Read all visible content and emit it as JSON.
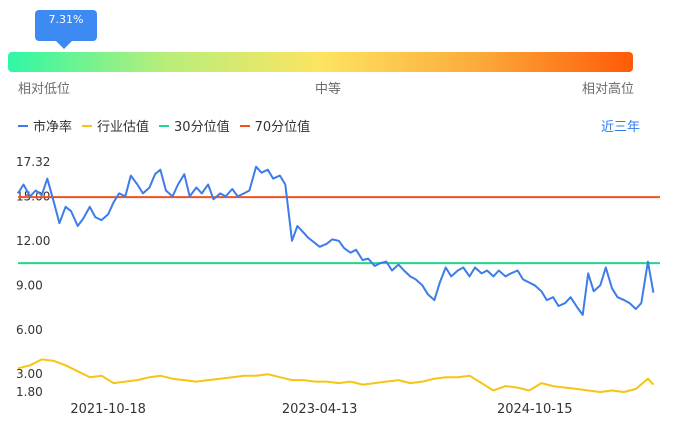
{
  "percentile_gauge": {
    "tooltip_value": "7.31%",
    "percentile": 7.31,
    "labels": {
      "low": "相对低位",
      "mid": "中等",
      "high": "相对高位"
    }
  },
  "legend": {
    "items": [
      {
        "label": "市净率",
        "color": "#3d7ce9"
      },
      {
        "label": "行业估值",
        "color": "#f5c515"
      },
      {
        "label": "30分位值",
        "color": "#1ed98b"
      },
      {
        "label": "70分位值",
        "color": "#f4511e"
      }
    ],
    "range_label": "近三年"
  },
  "chart_data": {
    "type": "line",
    "y_ticks": [
      "17.32",
      "15.00",
      "12.00",
      "9.00",
      "6.00",
      "3.00",
      "1.80"
    ],
    "ylim": [
      1.8,
      17.32
    ],
    "x_ticks": [
      "2021-10-18",
      "2023-04-13",
      "2024-10-15"
    ],
    "xlim": [
      "2021-03-01",
      "2025-09-01"
    ],
    "series": [
      {
        "name": "市净率",
        "color": "#3d7ce9",
        "x": [
          "2021-03-01",
          "2021-03-15",
          "2021-04-01",
          "2021-04-15",
          "2021-05-01",
          "2021-05-15",
          "2021-06-01",
          "2021-06-15",
          "2021-07-01",
          "2021-07-15",
          "2021-08-01",
          "2021-08-15",
          "2021-09-01",
          "2021-09-15",
          "2021-10-01",
          "2021-10-18",
          "2021-11-01",
          "2021-11-15",
          "2021-12-01",
          "2021-12-15",
          "2022-01-01",
          "2022-01-15",
          "2022-02-01",
          "2022-02-15",
          "2022-03-01",
          "2022-03-15",
          "2022-04-01",
          "2022-04-15",
          "2022-05-01",
          "2022-05-15",
          "2022-06-01",
          "2022-06-15",
          "2022-07-01",
          "2022-07-15",
          "2022-08-01",
          "2022-08-15",
          "2022-09-01",
          "2022-09-15",
          "2022-10-01",
          "2022-10-15",
          "2022-11-01",
          "2022-11-15",
          "2022-12-01",
          "2022-12-15",
          "2023-01-01",
          "2023-01-15",
          "2023-02-01",
          "2023-02-15",
          "2023-03-01",
          "2023-03-15",
          "2023-04-13",
          "2023-05-01",
          "2023-05-15",
          "2023-06-01",
          "2023-06-15",
          "2023-07-01",
          "2023-07-15",
          "2023-08-01",
          "2023-08-15",
          "2023-09-01",
          "2023-09-15",
          "2023-10-01",
          "2023-10-15",
          "2023-11-01",
          "2023-11-15",
          "2023-12-01",
          "2023-12-15",
          "2024-01-01",
          "2024-01-15",
          "2024-02-01",
          "2024-02-15",
          "2024-03-01",
          "2024-03-15",
          "2024-04-01",
          "2024-04-15",
          "2024-05-01",
          "2024-05-15",
          "2024-06-01",
          "2024-06-15",
          "2024-07-01",
          "2024-07-15",
          "2024-08-01",
          "2024-08-15",
          "2024-09-01",
          "2024-09-15",
          "2024-10-15",
          "2024-11-01",
          "2024-11-15",
          "2024-12-01",
          "2024-12-15",
          "2025-01-01",
          "2025-01-15",
          "2025-02-01",
          "2025-02-15",
          "2025-03-01",
          "2025-03-15",
          "2025-04-01",
          "2025-04-15",
          "2025-05-01",
          "2025-05-15",
          "2025-06-01",
          "2025-06-15",
          "2025-07-01",
          "2025-07-15",
          "2025-08-01",
          "2025-08-15"
        ],
        "values": [
          15.2,
          15.8,
          15.0,
          15.4,
          15.1,
          16.2,
          14.6,
          13.2,
          14.3,
          14.0,
          13.0,
          13.5,
          14.3,
          13.6,
          13.4,
          13.8,
          14.6,
          15.2,
          15.0,
          16.4,
          15.8,
          15.2,
          15.6,
          16.5,
          16.8,
          15.4,
          15.0,
          15.8,
          16.5,
          15.0,
          15.6,
          15.2,
          15.8,
          14.8,
          15.2,
          15.0,
          15.5,
          15.0,
          15.2,
          15.4,
          17.0,
          16.6,
          16.8,
          16.2,
          16.4,
          15.8,
          12.0,
          13.0,
          12.6,
          12.2,
          11.6,
          11.8,
          12.1,
          12.0,
          11.5,
          11.2,
          11.4,
          10.7,
          10.8,
          10.3,
          10.5,
          10.6,
          10.0,
          10.4,
          10.0,
          9.6,
          9.4,
          9.0,
          8.4,
          8.0,
          9.2,
          10.2,
          9.6,
          10.0,
          10.2,
          9.6,
          10.2,
          9.8,
          10.0,
          9.6,
          10.0,
          9.6,
          9.8,
          10.0,
          9.4,
          9.0,
          8.6,
          8.0,
          8.2,
          7.6,
          7.8,
          8.2,
          7.5,
          7.0,
          9.8,
          8.6,
          9.0,
          10.2,
          8.8,
          8.2,
          8.0,
          7.8,
          7.4,
          7.8,
          10.6,
          8.5
        ]
      },
      {
        "name": "行业估值",
        "color": "#f5c515",
        "x": [
          "2021-03-01",
          "2021-04-01",
          "2021-05-01",
          "2021-06-01",
          "2021-07-01",
          "2021-08-01",
          "2021-09-01",
          "2021-10-01",
          "2021-11-01",
          "2021-12-01",
          "2022-01-01",
          "2022-02-01",
          "2022-03-01",
          "2022-04-01",
          "2022-05-01",
          "2022-06-01",
          "2022-07-01",
          "2022-08-01",
          "2022-09-01",
          "2022-10-01",
          "2022-11-01",
          "2022-12-01",
          "2023-01-01",
          "2023-02-01",
          "2023-03-01",
          "2023-04-01",
          "2023-05-01",
          "2023-06-01",
          "2023-07-01",
          "2023-08-01",
          "2023-09-01",
          "2023-10-01",
          "2023-11-01",
          "2023-12-01",
          "2024-01-01",
          "2024-02-01",
          "2024-03-01",
          "2024-04-01",
          "2024-05-01",
          "2024-06-01",
          "2024-07-01",
          "2024-08-01",
          "2024-09-01",
          "2024-10-01",
          "2024-11-01",
          "2024-12-01",
          "2025-01-01",
          "2025-02-01",
          "2025-03-01",
          "2025-04-01",
          "2025-05-01",
          "2025-06-01",
          "2025-07-01",
          "2025-08-01",
          "2025-08-15"
        ],
        "values": [
          3.4,
          3.6,
          4.0,
          3.9,
          3.6,
          3.2,
          2.8,
          2.9,
          2.4,
          2.5,
          2.6,
          2.8,
          2.9,
          2.7,
          2.6,
          2.5,
          2.6,
          2.7,
          2.8,
          2.9,
          2.9,
          3.0,
          2.8,
          2.6,
          2.6,
          2.5,
          2.5,
          2.4,
          2.5,
          2.3,
          2.4,
          2.5,
          2.6,
          2.4,
          2.5,
          2.7,
          2.8,
          2.8,
          2.9,
          2.4,
          1.9,
          2.2,
          2.1,
          1.9,
          2.4,
          2.2,
          2.1,
          2.0,
          1.9,
          1.8,
          1.9,
          1.8,
          2.0,
          2.7,
          2.3
        ]
      },
      {
        "name": "30分位值",
        "color": "#1ed98b",
        "value": 10.5
      },
      {
        "name": "70分位值",
        "color": "#f4511e",
        "value": 14.95
      }
    ]
  }
}
